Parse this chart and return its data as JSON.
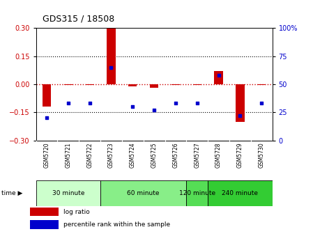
{
  "title": "GDS315 / 18508",
  "samples": [
    "GSM5720",
    "GSM5721",
    "GSM5722",
    "GSM5723",
    "GSM5724",
    "GSM5725",
    "GSM5726",
    "GSM5727",
    "GSM5728",
    "GSM5729",
    "GSM5730"
  ],
  "log_ratio": [
    -0.12,
    -0.005,
    -0.005,
    0.3,
    -0.01,
    -0.02,
    -0.005,
    -0.005,
    0.07,
    -0.2,
    -0.005
  ],
  "percentile": [
    20,
    33,
    33,
    65,
    30,
    27,
    33,
    33,
    58,
    22,
    33
  ],
  "ylim_left": [
    -0.3,
    0.3
  ],
  "ylim_right": [
    0,
    100
  ],
  "yticks_left": [
    -0.3,
    -0.15,
    0,
    0.15,
    0.3
  ],
  "yticks_right": [
    0,
    25,
    50,
    75,
    100
  ],
  "hlines_black": [
    -0.15,
    0.15
  ],
  "bar_color": "#cc0000",
  "dot_color": "#0000cc",
  "time_groups": [
    {
      "label": "30 minute",
      "start": 0,
      "end": 2,
      "color": "#ccffcc"
    },
    {
      "label": "60 minute",
      "start": 3,
      "end": 6,
      "color": "#88ee88"
    },
    {
      "label": "120 minute",
      "start": 7,
      "end": 7,
      "color": "#55dd55"
    },
    {
      "label": "240 minute",
      "start": 8,
      "end": 10,
      "color": "#33cc33"
    }
  ],
  "legend_ratio_label": "log ratio",
  "legend_pct_label": "percentile rank within the sample",
  "background_color": "#ffffff",
  "sample_bg_color": "#cccccc",
  "zero_line_color": "#cc0000"
}
